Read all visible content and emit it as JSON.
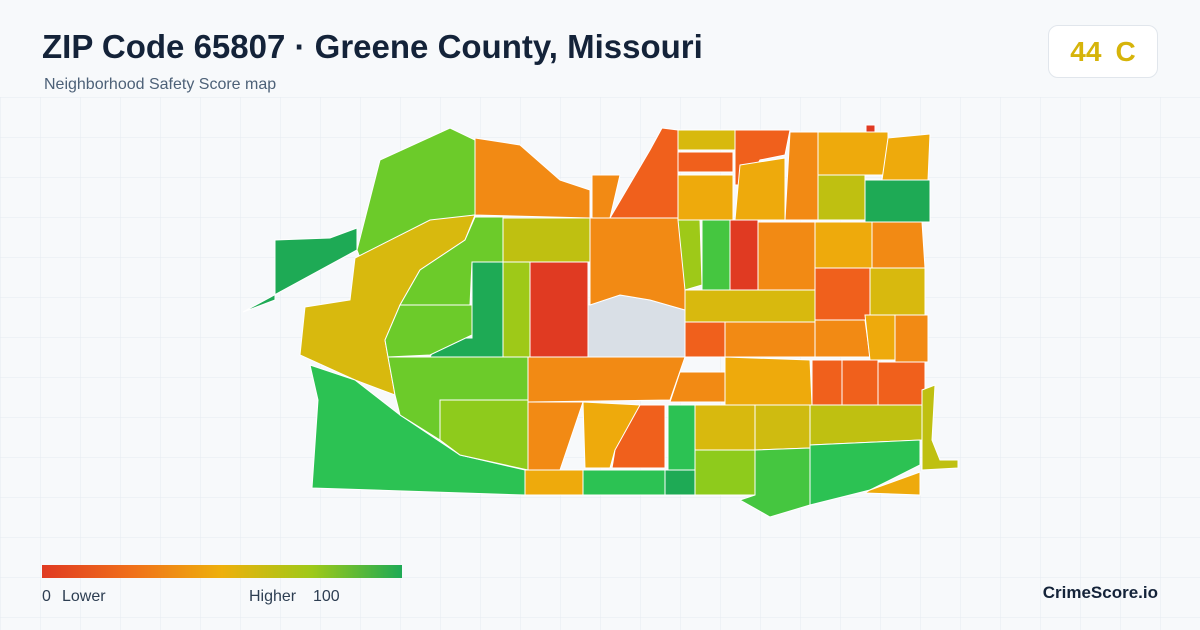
{
  "header": {
    "title": "ZIP Code 65807 · Greene County, Missouri",
    "subtitle": "Neighborhood Safety Score map"
  },
  "score": {
    "value": 44,
    "grade": "C"
  },
  "legend": {
    "min": 0,
    "min_label": "Lower",
    "max_label": "Higher",
    "max": 100
  },
  "brand": "CrimeScore.io"
}
